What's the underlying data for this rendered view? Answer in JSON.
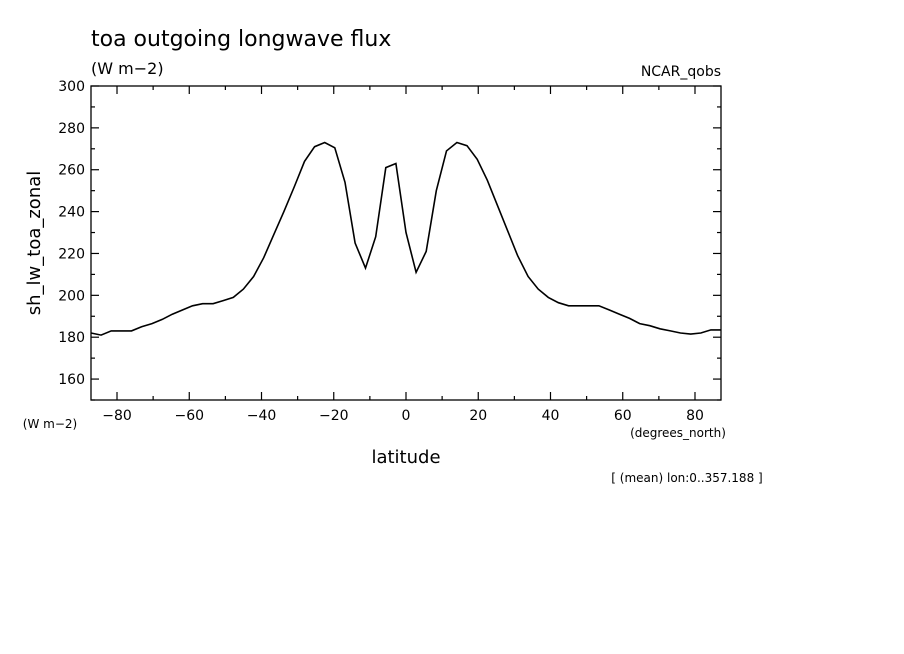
{
  "chart_data": {
    "type": "line",
    "title": "toa outgoing longwave flux",
    "subtitle": "(W m−2)",
    "source_label": "NCAR_qobs",
    "xlabel": "latitude",
    "x_units": "(degrees_north)",
    "ylabel": "sh_lw_toa_zonal",
    "y_units": "(W m−2)",
    "footnote": "[ (mean) lon:0..357.188 ]",
    "xlim": [
      -87.2,
      87.2
    ],
    "ylim": [
      150,
      300
    ],
    "x_ticks": [
      -80,
      -60,
      -40,
      -20,
      0,
      20,
      40,
      60,
      80
    ],
    "y_ticks": [
      160,
      180,
      200,
      220,
      240,
      260,
      280,
      300
    ],
    "grid": false,
    "series": [
      {
        "x": [
          -87.2,
          -84.4,
          -81.6,
          -78.8,
          -76.0,
          -73.2,
          -70.3,
          -67.5,
          -64.7,
          -61.9,
          -59.1,
          -56.3,
          -53.4,
          -50.6,
          -47.8,
          -45.0,
          -42.2,
          -39.4,
          -36.6,
          -33.8,
          -30.9,
          -28.1,
          -25.3,
          -22.5,
          -19.7,
          -16.9,
          -14.1,
          -11.2,
          -8.4,
          -5.6,
          -2.8,
          0.0,
          2.8,
          5.6,
          8.4,
          11.2,
          14.1,
          16.9,
          19.7,
          22.5,
          25.3,
          28.1,
          30.9,
          33.8,
          36.6,
          39.4,
          42.2,
          45.0,
          47.8,
          50.6,
          53.4,
          56.3,
          59.1,
          61.9,
          64.7,
          67.5,
          70.3,
          73.2,
          76.0,
          78.8,
          81.6,
          84.4,
          87.2
        ],
        "y": [
          182,
          181,
          183,
          183,
          183,
          185,
          186.5,
          188.5,
          191,
          193,
          195,
          196,
          196,
          197.5,
          199,
          203,
          209,
          218,
          229,
          240,
          252,
          264,
          271,
          273,
          270.5,
          254,
          225,
          213,
          228,
          261,
          263,
          230,
          211,
          221,
          250,
          269,
          273,
          271.5,
          265,
          255,
          243,
          231,
          219,
          209,
          203,
          199,
          196.5,
          195,
          195,
          195,
          195,
          193,
          191,
          189,
          186.5,
          185.5,
          184,
          183,
          182,
          181.5,
          182,
          183.5,
          183.5
        ]
      }
    ]
  }
}
